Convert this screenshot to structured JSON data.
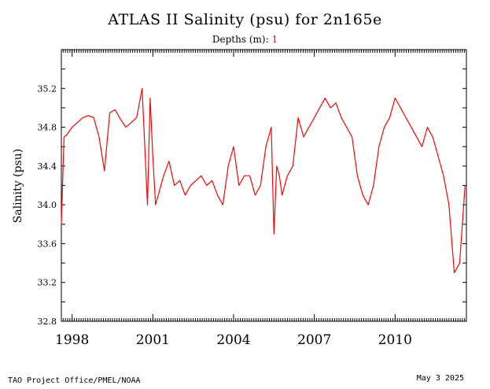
{
  "page": {
    "footer_left": "TAO Project Office/PMEL/NOAA",
    "footer_right": "May  3 2025"
  },
  "chart_data": {
    "type": "line",
    "title": "ATLAS II Salinity (psu) for 2n165e",
    "subtitle_label": "Depths (m):",
    "subtitle_value": "1",
    "xlabel": "",
    "ylabel": "Salinity (psu)",
    "xlim": [
      1997.6,
      2012.65
    ],
    "ylim": [
      32.8,
      35.6
    ],
    "xticks": [
      1998,
      2001,
      2004,
      2007,
      2010
    ],
    "yticks": [
      32.8,
      33.2,
      33.6,
      34.0,
      34.4,
      34.8,
      35.2
    ],
    "ytick_labels": [
      "32.8",
      "33.2",
      "33.6",
      "34.0",
      "34.4",
      "34.8",
      "35.2"
    ],
    "grid": false,
    "series": [
      {
        "color": "#ff0000",
        "segments": [
          {
            "x": [
              1997.6,
              1997.7,
              1997.8,
              1998.0,
              1998.2,
              1998.4,
              1998.6,
              1998.8,
              1999.0,
              1999.2,
              1999.4,
              1999.6,
              1999.8,
              2000.0,
              2000.2,
              2000.4,
              2000.6,
              2000.8,
              2000.9,
              2001.0,
              2001.1,
              2001.2,
              2001.4,
              2001.6,
              2001.8,
              2002.0,
              2002.2,
              2002.4,
              2002.6,
              2002.8,
              2003.0,
              2003.2,
              2003.4,
              2003.6,
              2003.8,
              2004.0,
              2004.2,
              2004.4,
              2004.6,
              2004.8,
              2005.0,
              2005.2,
              2005.4,
              2005.5,
              2005.6,
              2005.7,
              2005.8,
              2006.0,
              2006.2,
              2006.4,
              2006.6,
              2006.8,
              2007.0,
              2007.2,
              2007.4,
              2007.6,
              2007.8,
              2008.0,
              2008.2,
              2008.4,
              2008.6,
              2008.8,
              2009.0,
              2009.2,
              2009.4,
              2009.6,
              2009.8,
              2010.0,
              2010.2,
              2010.4,
              2010.6,
              2010.8,
              2011.0,
              2011.2,
              2011.4,
              2011.6,
              2011.8,
              2012.0,
              2012.2,
              2012.4,
              2012.6
            ],
            "y": [
              33.8,
              34.7,
              34.72,
              34.8,
              34.85,
              34.9,
              34.92,
              34.9,
              34.7,
              34.35,
              34.95,
              34.98,
              34.88,
              34.8,
              34.85,
              34.9,
              35.2,
              34.0,
              35.1,
              34.5,
              34.0,
              34.1,
              34.3,
              34.45,
              34.2,
              34.25,
              34.1,
              34.2,
              34.25,
              34.3,
              34.2,
              34.25,
              34.1,
              34.0,
              34.4,
              34.6,
              34.2,
              34.3,
              34.3,
              34.1,
              34.2,
              34.6,
              34.8,
              33.7,
              34.4,
              34.3,
              34.1,
              34.3,
              34.4,
              34.9,
              34.7,
              34.8,
              34.9,
              35.0,
              35.1,
              35.0,
              35.05,
              34.9,
              34.8,
              34.7,
              34.3,
              34.1,
              34.0,
              34.2,
              34.6,
              34.8,
              34.9,
              35.1,
              35.0,
              34.9,
              34.8,
              34.7,
              34.6,
              34.8,
              34.7,
              34.5,
              34.3,
              34.0,
              33.3,
              33.4,
              34.2
            ]
          }
        ]
      }
    ]
  }
}
